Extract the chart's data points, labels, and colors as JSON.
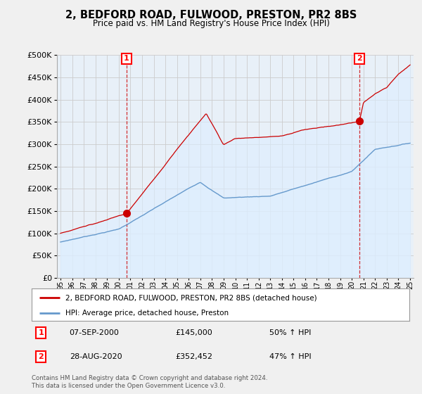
{
  "title": "2, BEDFORD ROAD, FULWOOD, PRESTON, PR2 8BS",
  "subtitle": "Price paid vs. HM Land Registry's House Price Index (HPI)",
  "ylim": [
    0,
    500000
  ],
  "ytick_values": [
    0,
    50000,
    100000,
    150000,
    200000,
    250000,
    300000,
    350000,
    400000,
    450000,
    500000
  ],
  "marker1": {
    "year": 2000.67,
    "price": 145000,
    "label": "1",
    "date": "07-SEP-2000",
    "amount": "£145,000",
    "pct": "50% ↑ HPI"
  },
  "marker2": {
    "year": 2020.65,
    "price": 352452,
    "label": "2",
    "date": "28-AUG-2020",
    "amount": "£352,452",
    "pct": "47% ↑ HPI"
  },
  "legend_line1": "2, BEDFORD ROAD, FULWOOD, PRESTON, PR2 8BS (detached house)",
  "legend_line2": "HPI: Average price, detached house, Preston",
  "footnote": "Contains HM Land Registry data © Crown copyright and database right 2024.\nThis data is licensed under the Open Government Licence v3.0.",
  "line_color_red": "#cc0000",
  "line_color_blue": "#6699cc",
  "fill_color": "#ddeeff",
  "bg_color": "#f0f0f0",
  "plot_bg_color": "#e8f0f8",
  "grid_color": "#cccccc"
}
